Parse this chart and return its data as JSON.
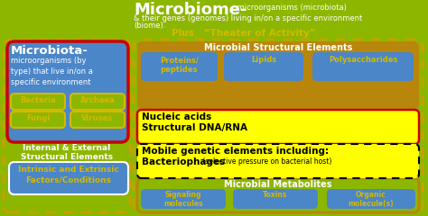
{
  "bg_color": "#8db600",
  "title_main": "Microbiome-",
  "title_sub": " microorganisms (microbiota)",
  "title_line2": "& their genes (genomes) living in/on a specific environment",
  "title_line3": "(biome).",
  "title_plus": "Plus   “Theater of Activity”",
  "microbiota_title": "Microbiota-",
  "microbiota_desc": "microorganisms (by\ntype) that live in/on a\nspecific environment",
  "microbiota_box_color": "#4a86c8",
  "microbiota_border_color": "#cc0000",
  "microbes": [
    "Bacteria",
    "Archaea",
    "Fungi",
    "Viruses"
  ],
  "microbe_border_color": "#d4b800",
  "internal_text": "Internal & External\nStructural Elements",
  "intrinsic_text": "Intrinsic and Extrinsic\nFactors/Conditions",
  "intrinsic_box_color": "#4a86c8",
  "structural_header": "Microbial Structural Elements",
  "structural_header_bg": "#b8860b",
  "structural_items": [
    "Proteins/\npeptides",
    "Lipids",
    "Polysaccharides"
  ],
  "structural_item_bg": "#4a86c8",
  "nucleic_text1": "Nucleic acids",
  "nucleic_text2": "Structural DNA/RNA",
  "nucleic_bg": "#ffff00",
  "nucleic_border": "#cc0000",
  "mobile_line1": "Mobile genetic elements including:",
  "mobile_line2": "Bacteriophages",
  "mobile_sub": " (selective pressure on bacterial host)",
  "mobile_bg": "#ffff00",
  "metabolites_header": "Microbial Metabolites",
  "metabolites_header_bg": "#8db600",
  "metabolites_header_border": "#b8860b",
  "metabolites_items": [
    "Signaling\nmolecules",
    "Toxins",
    "Organic\nmolecule(s)"
  ],
  "metabolites_item_bg": "#4a86c8",
  "white": "#ffffff",
  "yellow": "#d4b800",
  "black": "#000000",
  "dashed_color": "#c8a000"
}
